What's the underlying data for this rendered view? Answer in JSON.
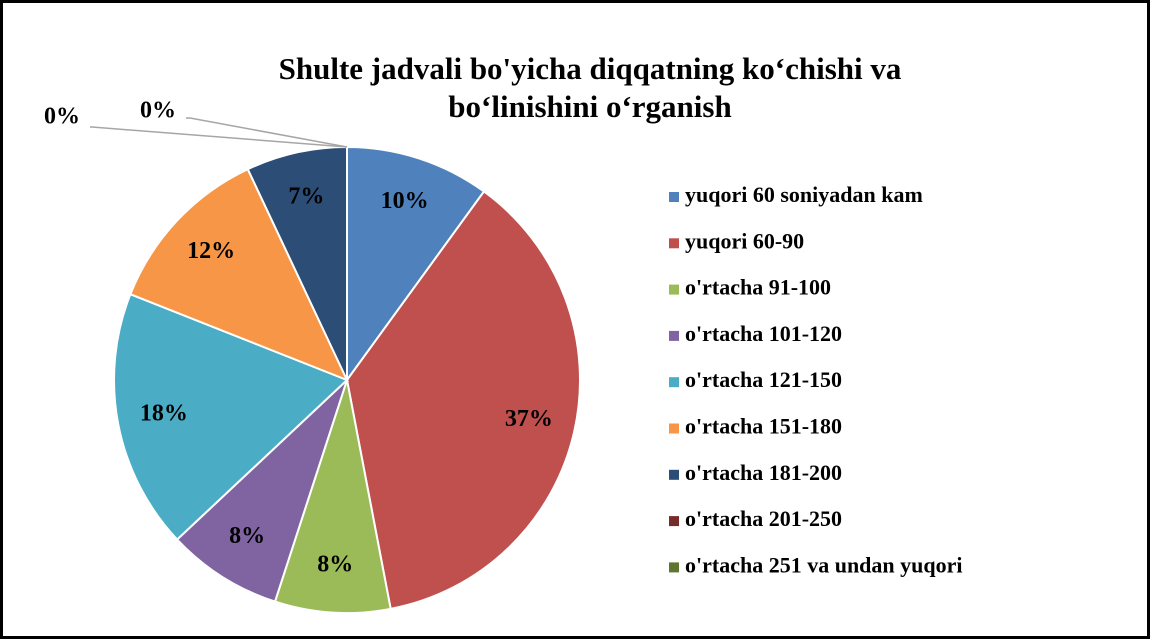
{
  "chart_data": {
    "type": "pie",
    "title": [
      "Shulte jadvali bo'yicha diqqatning ko‘chishi va",
      "bo‘linishini o‘rganish"
    ],
    "categories": [
      "yuqori 60 soniyadan kam",
      "yuqori 60-90",
      "o'rtacha 91-100",
      "o'rtacha 101-120",
      "o'rtacha 121-150",
      "o'rtacha 151-180",
      "o'rtacha 181-200",
      "o'rtacha 201-250",
      "o'rtacha 251 va undan yuqori"
    ],
    "values": [
      10,
      37,
      8,
      8,
      18,
      12,
      7,
      0,
      0
    ],
    "value_labels": [
      "10%",
      "37%",
      "8%",
      "8%",
      "18%",
      "12%",
      "7%",
      "0%",
      "0%"
    ],
    "colors": [
      "#4f81bd",
      "#c0504d",
      "#9bbb59",
      "#8064a2",
      "#4bacc6",
      "#f79646",
      "#2c4d75",
      "#772c2a",
      "#5f7530"
    ],
    "legend": "right"
  }
}
